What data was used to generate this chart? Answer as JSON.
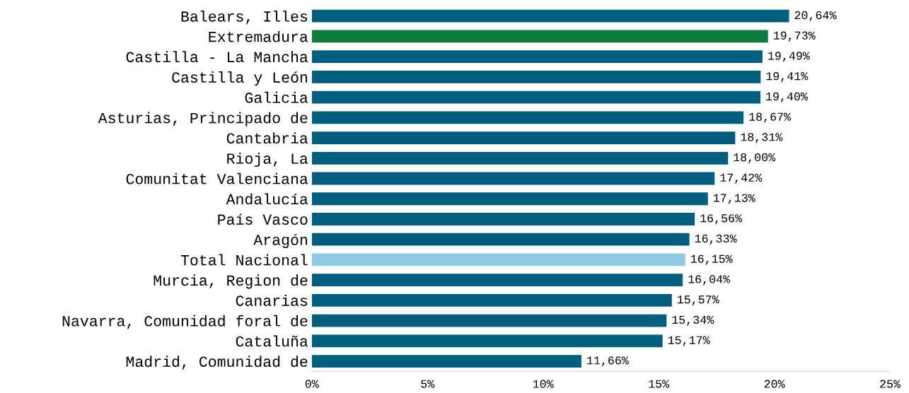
{
  "chart_data": {
    "type": "bar",
    "orientation": "horizontal",
    "categories": [
      "Balears, Illes",
      "Extremadura",
      "Castilla - La Mancha",
      "Castilla y León",
      "Galicia",
      "Asturias, Principado de",
      "Cantabria",
      "Rioja, La",
      "Comunitat Valenciana",
      "Andalucía",
      "País Vasco",
      "Aragón",
      "Total Nacional",
      "Murcia, Region de",
      "Canarias",
      "Navarra, Comunidad foral de",
      "Cataluña",
      "Madrid, Comunidad de"
    ],
    "values": [
      20.64,
      19.73,
      19.49,
      19.41,
      19.4,
      18.67,
      18.31,
      18.0,
      17.42,
      17.13,
      16.56,
      16.33,
      16.15,
      16.04,
      15.57,
      15.34,
      15.17,
      11.66
    ],
    "colors": [
      "#005e7f",
      "#0f7a3e",
      "#005e7f",
      "#005e7f",
      "#005e7f",
      "#005e7f",
      "#005e7f",
      "#005e7f",
      "#005e7f",
      "#005e7f",
      "#005e7f",
      "#005e7f",
      "#8ec9e8",
      "#005e7f",
      "#005e7f",
      "#005e7f",
      "#005e7f",
      "#005e7f"
    ],
    "value_labels": [
      "20,64%",
      "19,73%",
      "19,49%",
      "19,41%",
      "19,40%",
      "18,67%",
      "18,31%",
      "18,00%",
      "17,42%",
      "17,13%",
      "16,56%",
      "16,33%",
      "16,15%",
      "16,04%",
      "15,57%",
      "15,34%",
      "15,17%",
      "11,66%"
    ],
    "xlim": [
      0,
      25
    ],
    "xticks": [
      {
        "value": 0,
        "label": "0%"
      },
      {
        "value": 5,
        "label": "5%"
      },
      {
        "value": 10,
        "label": "10%"
      },
      {
        "value": 15,
        "label": "15%"
      },
      {
        "value": 20,
        "label": "20%"
      },
      {
        "value": 25,
        "label": "25%"
      }
    ],
    "grid": false,
    "legend": false
  }
}
